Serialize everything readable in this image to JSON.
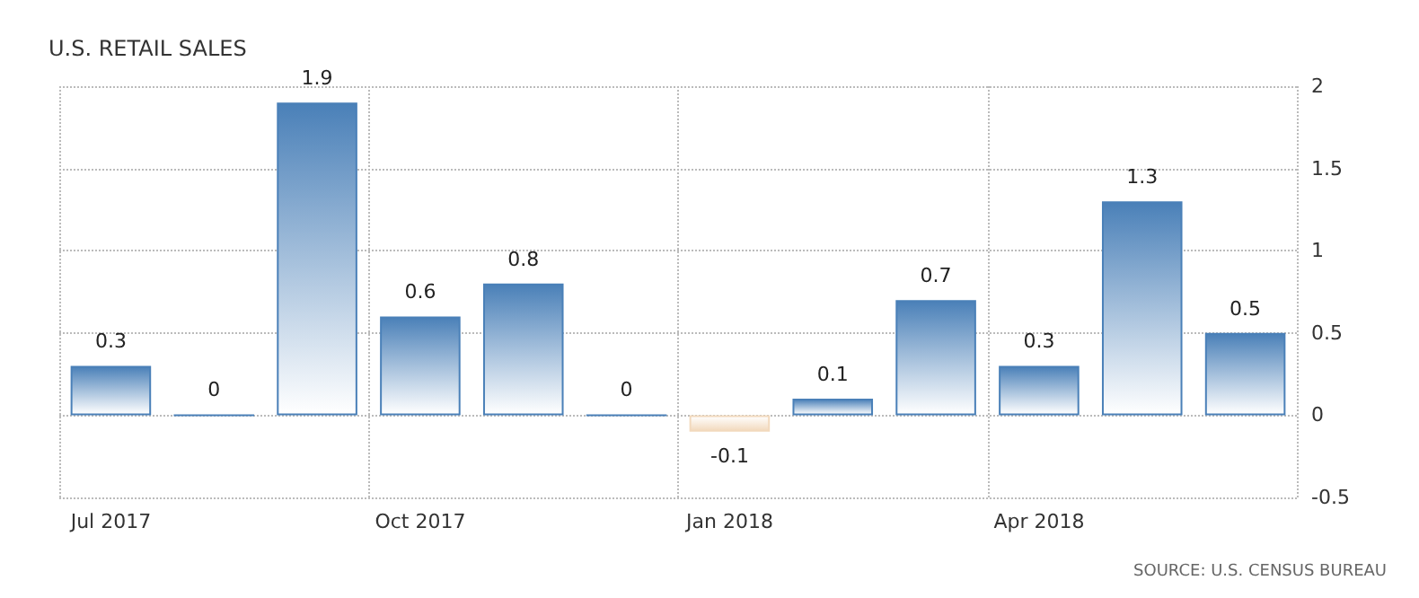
{
  "chart_data": {
    "type": "bar",
    "title": "U.S. RETAIL SALES",
    "categories": [
      "Jul 2017",
      null,
      null,
      "Oct 2017",
      null,
      null,
      "Jan 2018",
      null,
      null,
      "Apr 2018",
      null,
      null
    ],
    "values": [
      0.3,
      0,
      1.9,
      0.6,
      0.8,
      0,
      -0.1,
      0.1,
      0.7,
      0.3,
      1.3,
      0.5
    ],
    "colors": [
      "#4a80b8",
      "#4a80b8",
      "#4a80b8",
      "#4a80b8",
      "#4a80b8",
      "#4a80b8",
      "#f2d9bd",
      "#4a80b8",
      "#4a80b8",
      "#4a80b8",
      "#4a80b8",
      "#4a80b8"
    ],
    "ylim": [
      -0.5,
      2
    ],
    "yticks": [
      -0.5,
      0,
      0.5,
      1,
      1.5,
      2
    ],
    "grid": true,
    "data_labels": true,
    "annotations": [
      "SOURCE: U.S. CENSUS BUREAU"
    ]
  }
}
